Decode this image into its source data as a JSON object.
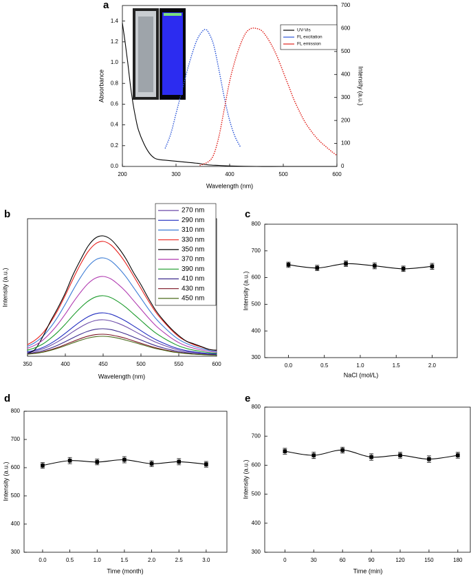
{
  "chart_data": [
    {
      "type": "line",
      "panel_label": "a",
      "xlabel": "Wavelength (nm)",
      "ylabel": "Absorbance",
      "y2label": "Intensity (a.u.)",
      "xlim": [
        200,
        600
      ],
      "xticks": [
        200,
        300,
        400,
        500,
        600
      ],
      "ylim": [
        0,
        1.55
      ],
      "yticks": [
        {
          "value": 0,
          "label": "0.0"
        },
        0.2,
        0.4,
        0.6,
        0.8,
        {
          "value": 1,
          "label": "1.0"
        },
        1.2,
        1.4
      ],
      "y2lim": [
        0,
        700
      ],
      "y2ticks": [
        0,
        100,
        200,
        300,
        400,
        500,
        600,
        700
      ],
      "legend": "upper right",
      "series": [
        {
          "name": "UV-Vis",
          "color": "#000000",
          "linestyle": "solid",
          "x": [
            200,
            205,
            210,
            215,
            220,
            225,
            230,
            240,
            250,
            260,
            270,
            280,
            300,
            320,
            340,
            360,
            380,
            400,
            450,
            500,
            600
          ],
          "values": [
            1.38,
            1.2,
            1.0,
            0.78,
            0.6,
            0.46,
            0.35,
            0.22,
            0.13,
            0.08,
            0.065,
            0.06,
            0.05,
            0.04,
            0.03,
            0.015,
            0.01,
            0.005,
            0,
            0,
            0
          ]
        },
        {
          "name": "FL excitation",
          "color": "#2a55d8",
          "linestyle": "dotted",
          "axis": "y2",
          "x": [
            280,
            290,
            300,
            310,
            320,
            330,
            340,
            350,
            355,
            360,
            370,
            380,
            390,
            400,
            410,
            420
          ],
          "values": [
            80,
            140,
            230,
            320,
            410,
            490,
            555,
            590,
            595,
            585,
            530,
            420,
            300,
            200,
            130,
            85
          ]
        },
        {
          "name": "FL emission",
          "color": "#e0201a",
          "linestyle": "dotted",
          "axis": "y2",
          "x": [
            345,
            360,
            370,
            380,
            390,
            400,
            410,
            420,
            430,
            440,
            450,
            460,
            470,
            480,
            490,
            500,
            510,
            520,
            530,
            540,
            550,
            560,
            570,
            580,
            590,
            600
          ],
          "values": [
            5,
            20,
            50,
            130,
            250,
            370,
            460,
            530,
            580,
            600,
            600,
            590,
            560,
            520,
            470,
            410,
            350,
            290,
            240,
            195,
            160,
            130,
            105,
            85,
            65,
            48
          ]
        }
      ]
    },
    {
      "type": "line",
      "panel_label": "b",
      "xlabel": "Wavelength (nm)",
      "ylabel": "Intensity (a.u.)",
      "xlim": [
        350,
        600
      ],
      "xticks": [
        350,
        400,
        450,
        500,
        550,
        600
      ],
      "ylim": [
        0,
        100
      ],
      "legend": "upper right",
      "x": [
        350,
        360,
        370,
        380,
        390,
        400,
        410,
        420,
        430,
        440,
        450,
        460,
        470,
        480,
        490,
        500,
        510,
        520,
        530,
        540,
        550,
        560,
        570,
        580,
        590,
        600
      ],
      "series": [
        {
          "name": "270 nm",
          "color": "#6b4aa8",
          "values": [
            2.7,
            3.7,
            5.3,
            7.7,
            10.6,
            14,
            17.8,
            21.2,
            24.1,
            26,
            26.5,
            25.7,
            23.9,
            21.5,
            18.6,
            15.6,
            12.7,
            10.1,
            8,
            6.1,
            4.5,
            3.4,
            2.7,
            2.1,
            1.6,
            1.3
          ]
        },
        {
          "name": "290 nm",
          "color": "#1f2bbf",
          "values": [
            3.2,
            4.4,
            6.3,
            9.1,
            12.6,
            16.7,
            21.1,
            25.2,
            28.7,
            30.9,
            31.5,
            30.6,
            28.4,
            25.5,
            22.1,
            18.6,
            15.1,
            12,
            9.5,
            7.2,
            5.4,
            4.1,
            3.2,
            2.5,
            1.9,
            1.6
          ]
        },
        {
          "name": "310 nm",
          "color": "#3a7bd5",
          "values": [
            7.2,
            10,
            14.3,
            20.7,
            28.6,
            37.9,
            47.9,
            57.2,
            65.1,
            70.1,
            71.5,
            69.4,
            64.4,
            57.9,
            50.1,
            42.2,
            34.3,
            27.2,
            21.5,
            16.4,
            12.2,
            9.3,
            7.2,
            5.7,
            4.3,
            3.6
          ]
        },
        {
          "name": "330 nm",
          "color": "#e8201c",
          "values": [
            8.4,
            11.7,
            16.7,
            24.2,
            33.4,
            44.3,
            55.9,
            66.8,
            76,
            81.8,
            83.5,
            81,
            75.2,
            67.6,
            58.5,
            49.3,
            40.1,
            31.7,
            25.1,
            19.2,
            14.2,
            10.9,
            8.4,
            6.7,
            5,
            4.2
          ]
        },
        {
          "name": "350 nm",
          "color": "#000000",
          "values": [
            2,
            5,
            14,
            25,
            35,
            46,
            59,
            70,
            80,
            86,
            87.5,
            85,
            79,
            71,
            61,
            52,
            42,
            33,
            26,
            20,
            15,
            11,
            9,
            7,
            5,
            4.4
          ]
        },
        {
          "name": "370 nm",
          "color": "#b03ab0",
          "values": [
            5.8,
            8.1,
            11.6,
            16.8,
            23.2,
            30.7,
            38.9,
            46.4,
            52.8,
            56.8,
            58,
            56.3,
            52.2,
            47,
            40.6,
            34.2,
            27.8,
            22,
            17.4,
            13.3,
            9.9,
            7.5,
            5.8,
            4.6,
            3.5,
            2.9
          ]
        },
        {
          "name": "390 nm",
          "color": "#1a9a2a",
          "values": [
            4.4,
            6.2,
            8.8,
            12.8,
            17.6,
            23.3,
            29.5,
            35.2,
            40,
            43.1,
            44,
            42.7,
            39.6,
            35.6,
            30.8,
            26,
            21.1,
            16.7,
            13.2,
            10.1,
            7.5,
            5.7,
            4.4,
            3.5,
            2.6,
            2.2
          ]
        },
        {
          "name": "410 nm",
          "color": "#3c2a8c",
          "values": [
            2,
            2.8,
            4,
            5.8,
            8,
            10.6,
            13.4,
            16,
            18.2,
            19.6,
            20,
            19.4,
            18,
            16.2,
            14,
            11.8,
            9.6,
            7.6,
            6,
            4.6,
            3.4,
            2.6,
            2,
            1.6,
            1.2,
            1
          ]
        },
        {
          "name": "430 nm",
          "color": "#7a1020",
          "values": [
            1.6,
            2.2,
            3.2,
            4.6,
            6.4,
            8.5,
            10.7,
            12.8,
            14.6,
            15.7,
            16,
            15.5,
            14.4,
            13,
            11.2,
            9.4,
            7.7,
            6.1,
            4.8,
            3.7,
            2.7,
            2.1,
            1.6,
            1.3,
            1,
            0.8
          ]
        },
        {
          "name": "450 nm",
          "color": "#4a6a1a",
          "values": [
            1.5,
            2,
            2.9,
            4.2,
            5.8,
            7.7,
            9.7,
            11.6,
            13.2,
            14.2,
            14.5,
            14.1,
            13.1,
            11.7,
            10.2,
            8.6,
            7,
            5.5,
            4.4,
            3.3,
            2.5,
            1.9,
            1.5,
            1.2,
            0.9,
            0.7
          ]
        }
      ]
    },
    {
      "type": "line",
      "panel_label": "c",
      "xlabel": "NaCl (mol/L)",
      "ylabel": "Intensity (a.u.)",
      "xlim": [
        -0.33,
        2.35
      ],
      "xticks": [
        {
          "value": 0,
          "label": "0.0"
        },
        0.5,
        {
          "value": 1,
          "label": "1.0"
        },
        1.5,
        {
          "value": 2,
          "label": "2.0"
        }
      ],
      "ylim": [
        300,
        800
      ],
      "yticks": [
        300,
        400,
        500,
        600,
        700,
        800
      ],
      "x": [
        0,
        0.4,
        0.8,
        1.2,
        1.6,
        2.0
      ],
      "series": [
        {
          "color": "#000000",
          "marker": "square",
          "values": [
            648,
            636,
            652,
            644,
            633,
            642
          ],
          "errors": [
            10,
            10,
            10,
            11,
            10,
            11
          ]
        }
      ]
    },
    {
      "type": "line",
      "panel_label": "d",
      "xlabel": "Time (month)",
      "ylabel": "Intensity (a.u.)",
      "xlim": [
        -0.34,
        3.38
      ],
      "xticks": [
        {
          "value": 0,
          "label": "0.0"
        },
        0.5,
        {
          "value": 1,
          "label": "1.0"
        },
        1.5,
        {
          "value": 2,
          "label": "2.0"
        },
        2.5,
        {
          "value": 3,
          "label": "3.0"
        }
      ],
      "ylim": [
        300,
        800
      ],
      "yticks": [
        300,
        400,
        500,
        600,
        700,
        800
      ],
      "x": [
        0,
        0.5,
        1,
        1.5,
        2,
        2.5,
        3
      ],
      "series": [
        {
          "color": "#000000",
          "marker": "square",
          "values": [
            608,
            625,
            620,
            628,
            614,
            621,
            612
          ],
          "errors": [
            10,
            11,
            10,
            11,
            10,
            11,
            10
          ]
        }
      ]
    },
    {
      "type": "line",
      "panel_label": "e",
      "xlabel": "Time (min)",
      "ylabel": "Intensity (a.u.)",
      "xlim": [
        -21,
        193
      ],
      "xticks": [
        0,
        30,
        60,
        90,
        120,
        150,
        180
      ],
      "ylim": [
        300,
        800
      ],
      "yticks": [
        300,
        400,
        500,
        600,
        700,
        800
      ],
      "x": [
        0,
        30,
        60,
        90,
        120,
        150,
        180
      ],
      "series": [
        {
          "color": "#000000",
          "marker": "square",
          "values": [
            648,
            634,
            652,
            628,
            634,
            621,
            634
          ],
          "errors": [
            10,
            11,
            10,
            11,
            10,
            11,
            10
          ]
        }
      ]
    }
  ]
}
